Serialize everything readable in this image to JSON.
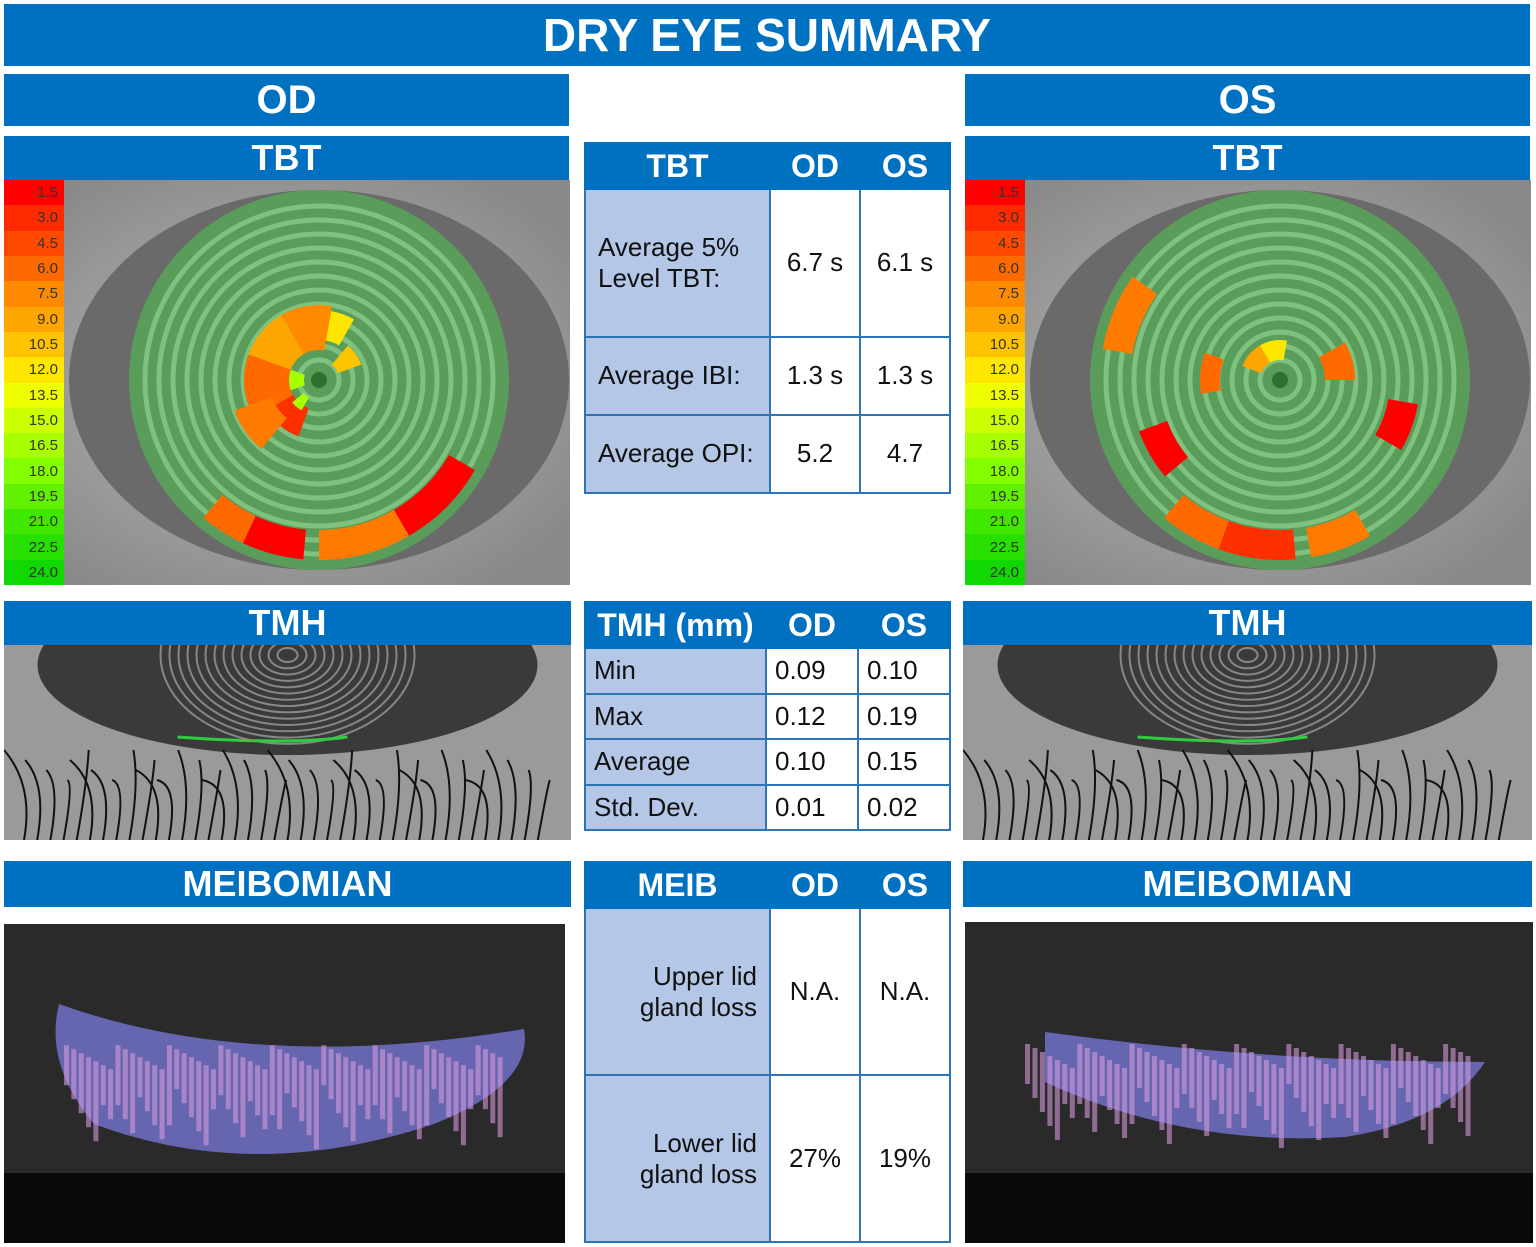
{
  "title": "DRY EYE SUMMARY",
  "eyes": {
    "left_label": "OD",
    "right_label": "OS"
  },
  "sections": {
    "tbt": "TBT",
    "tmh": "TMH",
    "meib": "MEIBOMIAN"
  },
  "tbt_scale": [
    "1.5",
    "3.0",
    "4.5",
    "6.0",
    "7.5",
    "9.0",
    "10.5",
    "12.0",
    "13.5",
    "15.0",
    "16.5",
    "18.0",
    "19.5",
    "21.0",
    "22.5",
    "24.0"
  ],
  "scale_colors": [
    "#ff0000",
    "#ff2a00",
    "#ff4a00",
    "#ff6a00",
    "#ff8a00",
    "#ffa500",
    "#ffc400",
    "#ffe600",
    "#f0ff00",
    "#ccff00",
    "#a8ff00",
    "#84ff00",
    "#60f000",
    "#40e800",
    "#28e000",
    "#10d800"
  ],
  "colors": {
    "header_blue": "#0070C0",
    "label_cell": "#B4C7E7",
    "border": "#2E75B6"
  },
  "tbt_table": {
    "headers": [
      "TBT",
      "OD",
      "OS"
    ],
    "rows": [
      {
        "label": "Average 5% Level TBT:",
        "od": "6.7 s",
        "os": "6.1 s"
      },
      {
        "label": "Average IBI:",
        "od": "1.3 s",
        "os": "1.3 s"
      },
      {
        "label": "Average OPI:",
        "od": "5.2",
        "os": "4.7"
      }
    ]
  },
  "tmh_table": {
    "headers": [
      "TMH (mm)",
      "OD",
      "OS"
    ],
    "rows": [
      {
        "label": "Min",
        "od": "0.09",
        "os": "0.10"
      },
      {
        "label": "Max",
        "od": "0.12",
        "os": "0.19"
      },
      {
        "label": "Average",
        "od": "0.10",
        "os": "0.15"
      },
      {
        "label": "Std. Dev.",
        "od": "0.01",
        "os": "0.02"
      }
    ]
  },
  "meib_table": {
    "headers": [
      "MEIB",
      "OD",
      "OS"
    ],
    "rows": [
      {
        "label": "Upper lid gland loss",
        "od": "N.A.",
        "os": "N.A."
      },
      {
        "label": "Lower lid gland loss",
        "od": "27%",
        "os": "19%"
      }
    ]
  }
}
